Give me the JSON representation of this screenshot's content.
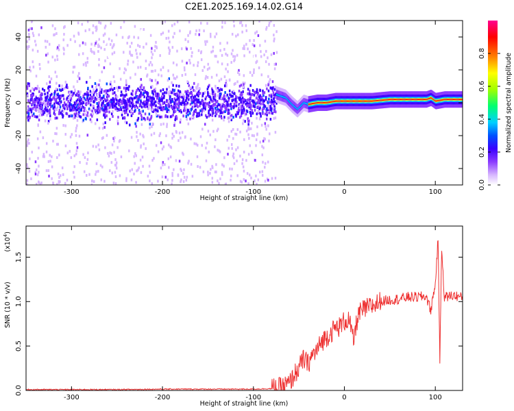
{
  "title": "C2E1.2025.169.14.02.G14",
  "chart_data": [
    {
      "type": "heatmap",
      "xlabel": "Height of straight line (km)",
      "ylabel": "Frequency (Hz)",
      "xlim": [
        -350,
        130
      ],
      "ylim": [
        -50,
        50
      ],
      "xticks": [
        -300,
        -200,
        -100,
        0,
        100
      ],
      "xtick_labels": [
        "-300",
        "-200",
        "-100",
        "0",
        "100"
      ],
      "yticks": [
        -40,
        -20,
        0,
        20,
        40
      ],
      "ytick_labels": [
        "-40",
        "-20",
        "0",
        "20",
        "40"
      ],
      "grid": false,
      "colorbar": {
        "label": "Normalized spectral amplitude",
        "range": [
          0,
          1
        ],
        "ticks": [
          0.0,
          0.2,
          0.4,
          0.6,
          0.8
        ],
        "tick_labels": [
          "0.0",
          "0.2",
          "0.4",
          "0.6",
          "0.8"
        ],
        "colormap": [
          "#ffffff",
          "#d8b8ff",
          "#8c3cff",
          "#3a00ff",
          "#0050ff",
          "#00d0ff",
          "#00ff70",
          "#a0ff00",
          "#ffff00",
          "#ff8000",
          "#ff0000",
          "#ff0090"
        ]
      },
      "noise_region_x": [
        -350,
        -75
      ],
      "signal_track": {
        "x": [
          -75,
          -65,
          -58,
          -52,
          -45,
          -40,
          -30,
          -20,
          -10,
          0,
          10,
          30,
          50,
          70,
          90,
          95,
          100,
          110,
          130
        ],
        "y": [
          5,
          3,
          -1,
          -4,
          0,
          -1,
          0,
          0,
          1,
          1,
          1,
          1,
          2,
          2,
          2,
          3,
          1,
          2,
          2
        ]
      }
    },
    {
      "type": "line",
      "xlabel": "Height of straight line (km)",
      "ylabel": "SNR (10 * v/v)",
      "y_multiplier": "(x10",
      "y_multiplier_exp": "4",
      "y_multiplier_close": ")",
      "xlim": [
        -350,
        130
      ],
      "ylim": [
        0,
        1.85
      ],
      "xticks": [
        -300,
        -200,
        -100,
        0,
        100
      ],
      "xtick_labels": [
        "-300",
        "-200",
        "-100",
        "0",
        "100"
      ],
      "yticks": [
        0,
        0.5,
        1.0,
        1.5
      ],
      "ytick_labels": [
        "0.0",
        "0.5",
        "1.0",
        "1.5"
      ],
      "grid": false,
      "series": [
        {
          "color": "#ee3030",
          "x": [
            -350,
            -300,
            -250,
            -200,
            -150,
            -100,
            -80,
            -70,
            -60,
            -55,
            -50,
            -45,
            -40,
            -35,
            -30,
            -25,
            -20,
            -15,
            -10,
            -5,
            0,
            5,
            10,
            15,
            20,
            30,
            40,
            50,
            60,
            70,
            80,
            90,
            95,
            100,
            103,
            105,
            107,
            110,
            115,
            120,
            125,
            130
          ],
          "y": [
            0.01,
            0.01,
            0.01,
            0.015,
            0.015,
            0.015,
            0.02,
            0.03,
            0.08,
            0.18,
            0.25,
            0.35,
            0.3,
            0.4,
            0.45,
            0.55,
            0.6,
            0.65,
            0.7,
            0.72,
            0.78,
            0.8,
            0.55,
            0.85,
            0.9,
            0.95,
            1.0,
            1.02,
            1.03,
            1.05,
            1.05,
            1.06,
            0.9,
            1.2,
            1.7,
            0.35,
            1.6,
            1.05,
            1.06,
            1.07,
            1.06,
            1.04
          ]
        }
      ]
    }
  ]
}
